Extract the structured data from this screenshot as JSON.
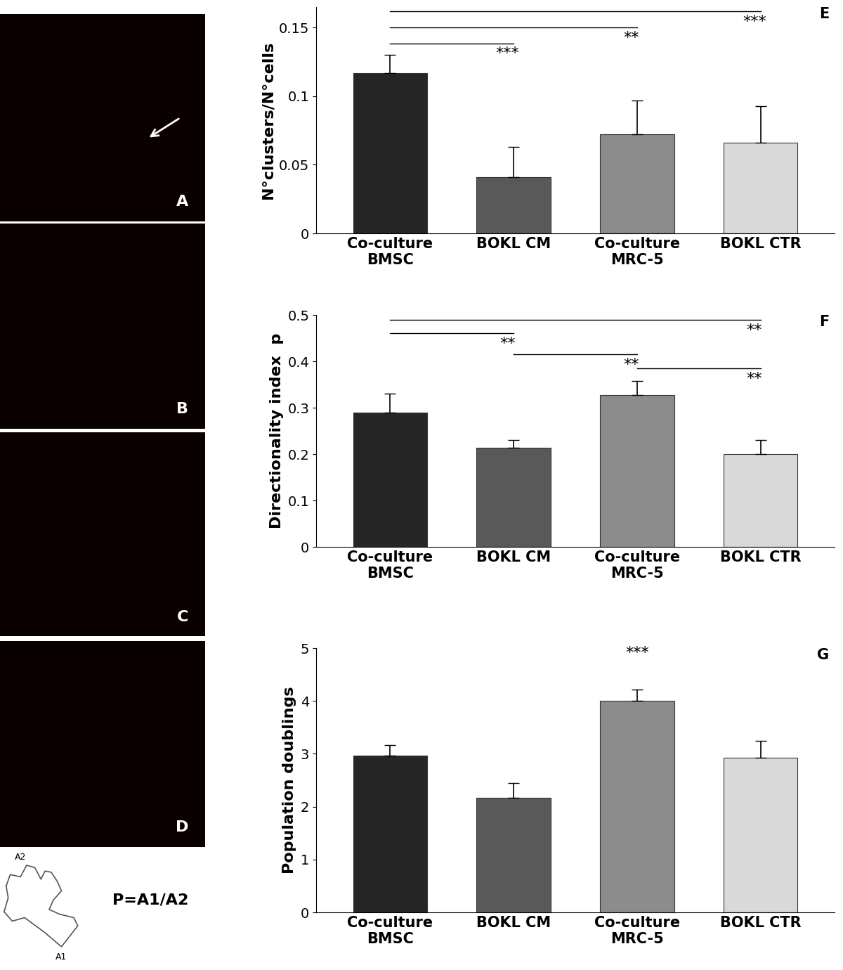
{
  "chart_data": [
    {
      "type": "bar",
      "panel": "E",
      "categories": [
        "Co-culture\nBMSC",
        "BOKL CM",
        "Co-culture\nMRC-5",
        "BOKL CTR"
      ],
      "values": [
        0.117,
        0.041,
        0.072,
        0.066
      ],
      "errors": [
        0.013,
        0.022,
        0.025,
        0.027
      ],
      "colors": [
        "#262626",
        "#595959",
        "#8c8c8c",
        "#d9d9d9"
      ],
      "y_label": "N°clusters/N°cells",
      "ylim": [
        0,
        0.165
      ],
      "yticks": [
        0,
        0.05,
        0.1,
        0.15
      ],
      "significance": [
        {
          "pair": [
            "Co-culture\nBMSC",
            "BOKL CTR"
          ],
          "label": "***"
        },
        {
          "pair": [
            "Co-culture\nBMSC",
            "Co-culture\nMRC-5"
          ],
          "label": "**"
        },
        {
          "pair": [
            "Co-culture\nBMSC",
            "BOKL CM"
          ],
          "label": "***"
        }
      ]
    },
    {
      "type": "bar",
      "panel": "F",
      "categories": [
        "Co-culture\nBMSC",
        "BOKL CM",
        "Co-culture\nMRC-5",
        "BOKL CTR"
      ],
      "values": [
        0.29,
        0.213,
        0.327,
        0.2
      ],
      "errors": [
        0.04,
        0.017,
        0.03,
        0.03
      ],
      "colors": [
        "#262626",
        "#595959",
        "#8c8c8c",
        "#d9d9d9"
      ],
      "y_label": "Directionality index  p",
      "ylim": [
        0,
        0.5
      ],
      "yticks": [
        0,
        0.1,
        0.2,
        0.3,
        0.4,
        0.5
      ],
      "significance": [
        {
          "pair": [
            "Co-culture\nBMSC",
            "BOKL CTR"
          ],
          "label": "**"
        },
        {
          "pair": [
            "Co-culture\nBMSC",
            "BOKL CM"
          ],
          "label": "**"
        },
        {
          "pair": [
            "BOKL CM",
            "Co-culture\nMRC-5"
          ],
          "label": "**"
        },
        {
          "pair": [
            "Co-culture\nMRC-5",
            "BOKL CTR"
          ],
          "label": "**"
        }
      ]
    },
    {
      "type": "bar",
      "panel": "G",
      "categories": [
        "Co-culture\nBMSC",
        "BOKL CM",
        "Co-culture\nMRC-5",
        "BOKL CTR"
      ],
      "values": [
        2.97,
        2.17,
        4.0,
        2.92
      ],
      "errors": [
        0.2,
        0.28,
        0.22,
        0.33
      ],
      "colors": [
        "#262626",
        "#595959",
        "#8c8c8c",
        "#d9d9d9"
      ],
      "y_label": "Population doublings",
      "ylim": [
        0,
        5
      ],
      "yticks": [
        0,
        1,
        2,
        3,
        4,
        5
      ],
      "annotations": [
        {
          "category": "Co-culture\nMRC-5",
          "text": "***"
        }
      ]
    }
  ],
  "image_panels": [
    "A",
    "B",
    "C",
    "D"
  ],
  "diagram": {
    "labels": [
      "A2",
      "A1"
    ],
    "formula": "P=A1/A2"
  }
}
